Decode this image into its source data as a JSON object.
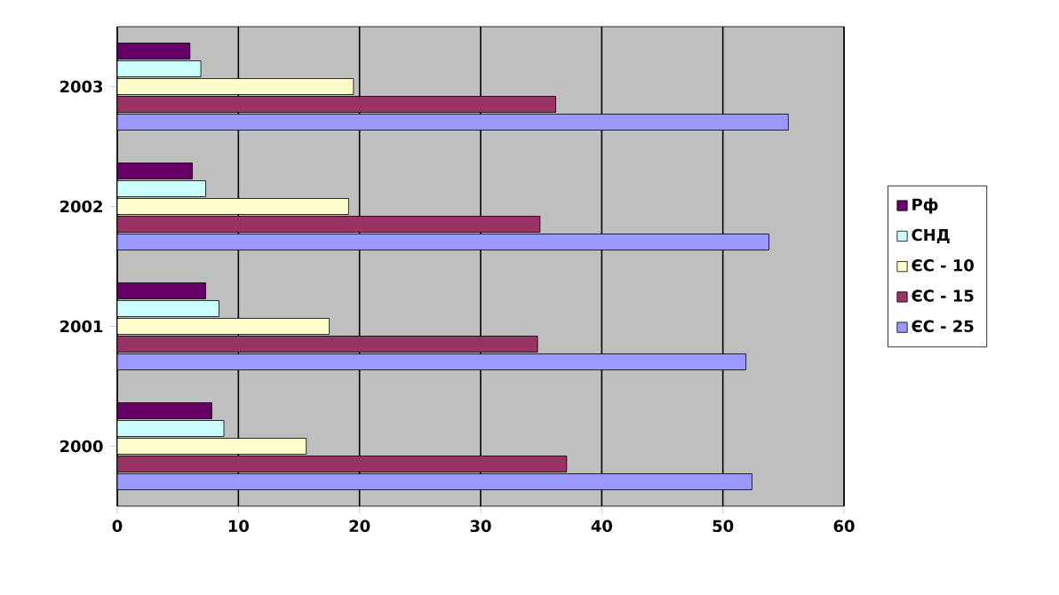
{
  "chart_data": {
    "type": "bar",
    "orientation": "horizontal",
    "categories": [
      "2003",
      "2002",
      "2001",
      "2000"
    ],
    "series": [
      {
        "name": "Рф",
        "color": "#660066",
        "values": [
          6.0,
          6.2,
          7.3,
          7.8
        ]
      },
      {
        "name": "СНД",
        "color": "#ccffff",
        "values": [
          6.9,
          7.3,
          8.4,
          8.8
        ]
      },
      {
        "name": "ЄС - 10",
        "color": "#ffffcc",
        "values": [
          19.5,
          19.1,
          17.5,
          15.6
        ]
      },
      {
        "name": "ЄС - 15",
        "color": "#993366",
        "values": [
          36.2,
          34.9,
          34.7,
          37.1
        ]
      },
      {
        "name": "ЄС - 25",
        "color": "#9999ff",
        "values": [
          55.4,
          53.8,
          51.9,
          52.4
        ]
      }
    ],
    "xlim": [
      0,
      60
    ],
    "xticks": [
      0,
      10,
      20,
      30,
      40,
      50,
      60
    ],
    "grid": "x",
    "legend": "right"
  }
}
